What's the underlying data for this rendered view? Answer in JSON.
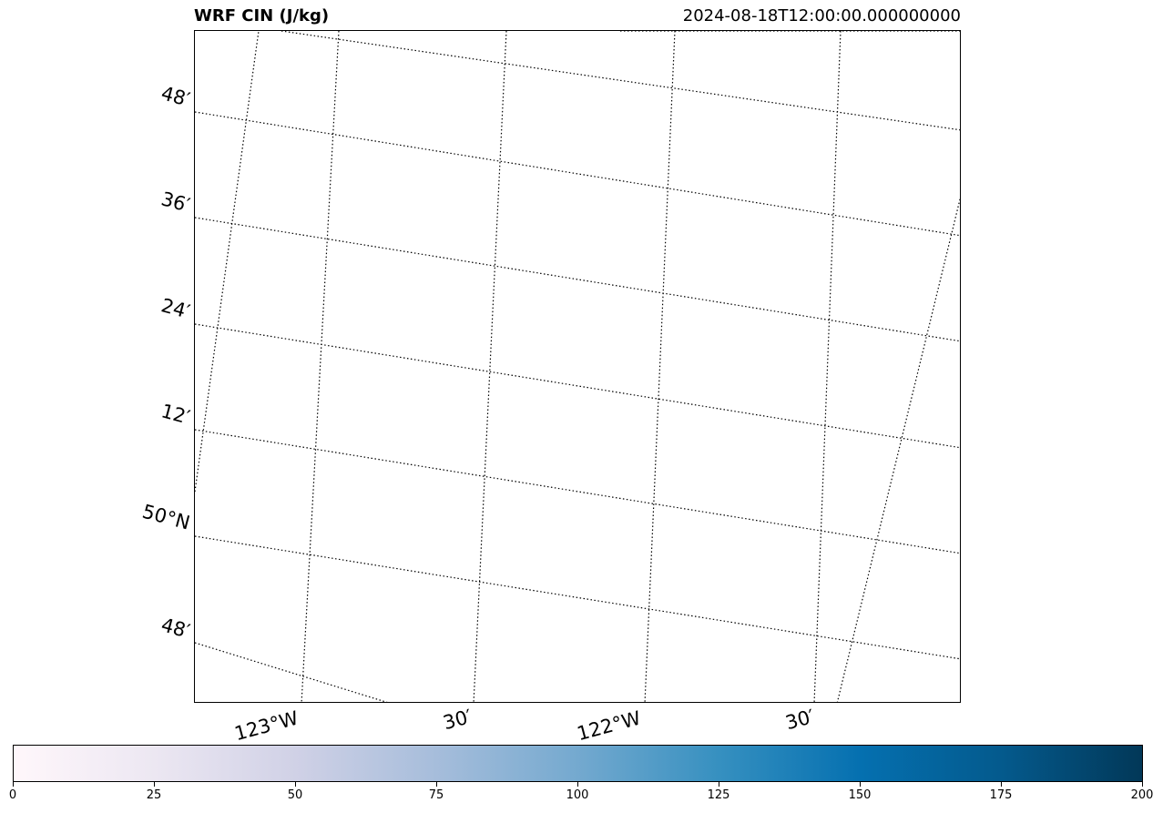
{
  "title": {
    "left": "WRF CIN (J/kg)",
    "right": "2024-08-18T12:00:00.000000000"
  },
  "map": {
    "gridline_style": "dotted black",
    "lat_labels": [
      "48′",
      "36′",
      "24′",
      "12′",
      "50°N",
      "48′"
    ],
    "lon_labels": [
      "123°W",
      "30′",
      "122°W",
      "30′"
    ]
  },
  "colorbar": {
    "colormap": "PuBu",
    "colors": [
      "#fff7fb",
      "#ece7f2",
      "#d0d1e6",
      "#a6bddb",
      "#74a9cf",
      "#3690c0",
      "#0570b0",
      "#045a8d",
      "#023858"
    ],
    "ticks": [
      "0",
      "25",
      "50",
      "75",
      "100",
      "125",
      "150",
      "175",
      "200"
    ],
    "min": 0,
    "max": 200
  }
}
